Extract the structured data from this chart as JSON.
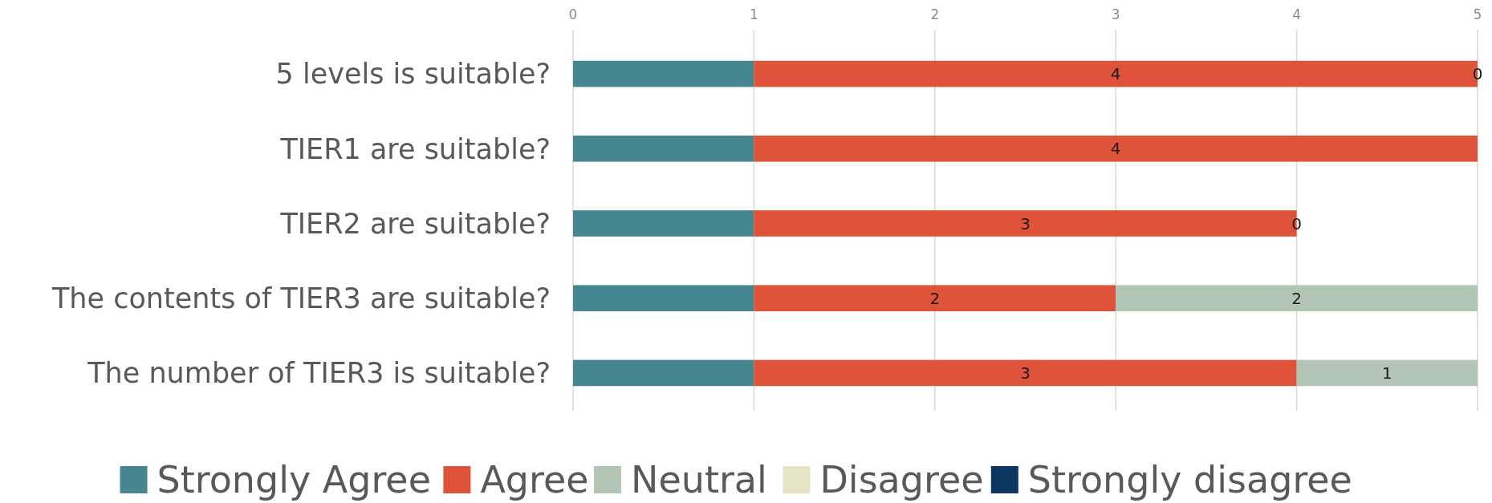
{
  "chart_data": {
    "type": "bar",
    "orientation": "horizontal",
    "stacked": true,
    "categories": [
      "5 levels is suitable?",
      "TIER1 are suitable?",
      "TIER2 are suitable?",
      "The contents of TIER3 are suitable?",
      "The number of TIER3 is suitable?"
    ],
    "series": [
      {
        "name": "Strongly Agree",
        "color": "#468690",
        "values": [
          1,
          1,
          1,
          1,
          1
        ]
      },
      {
        "name": "Agree",
        "color": "#e0533b",
        "values": [
          4,
          4,
          3,
          2,
          3
        ],
        "value_labels": [
          "4",
          "4",
          "3",
          "2",
          "3"
        ]
      },
      {
        "name": "Neutral",
        "color": "#b3c6b5",
        "values": [
          0,
          0,
          0,
          2,
          1
        ],
        "value_labels": [
          "0",
          null,
          "0",
          "2",
          "1"
        ]
      },
      {
        "name": "Disagree",
        "color": "#e5e4c5",
        "values": [
          0,
          0,
          0,
          0,
          0
        ]
      },
      {
        "name": "Strongly disagree",
        "color": "#0d3660",
        "values": [
          0,
          0,
          0,
          0,
          0
        ]
      }
    ],
    "xlim": [
      0,
      5
    ],
    "xticks": [
      0,
      1,
      2,
      3,
      4,
      5
    ],
    "grid": "x",
    "legend": "bottom"
  }
}
